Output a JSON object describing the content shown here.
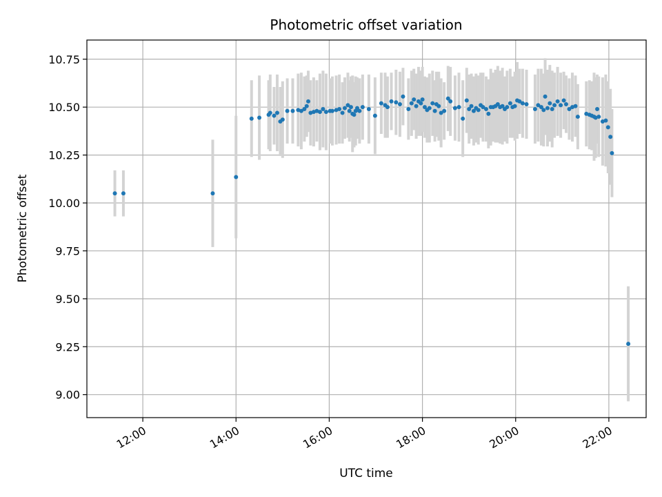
{
  "chart_data": {
    "type": "scatter",
    "title": "Photometric offset variation",
    "xlabel": "UTC time",
    "ylabel": "Photometric offset",
    "x_unit": "UTC hh:mm",
    "x_ticks": [
      "12:00",
      "14:00",
      "16:00",
      "18:00",
      "20:00",
      "22:00"
    ],
    "xlim": [
      "10:48",
      "22:48"
    ],
    "y_ticks": [
      "9.00",
      "9.25",
      "9.50",
      "9.75",
      "10.00",
      "10.25",
      "10.50",
      "10.75"
    ],
    "ylim": [
      8.88,
      10.85
    ],
    "grid": true,
    "colors": {
      "point": "#1f77b4",
      "errorbar": "#d3d3d3",
      "grid": "#b0b0b0",
      "axes": "#000000"
    },
    "series": [
      {
        "points": [
          [
            "11:24",
            10.05,
            0.12
          ],
          [
            "11:35",
            10.05,
            0.12
          ],
          [
            "13:30",
            10.05,
            0.28
          ],
          [
            "14:00",
            10.135,
            0.32
          ],
          [
            "14:20",
            10.44,
            0.2
          ],
          [
            "14:30",
            10.445,
            0.22
          ],
          [
            "14:42",
            10.46,
            0.18
          ],
          [
            "14:44",
            10.47,
            0.2
          ],
          [
            "14:49",
            10.455,
            0.15
          ],
          [
            "14:53",
            10.47,
            0.2
          ],
          [
            "14:57",
            10.425,
            0.18
          ],
          [
            "15:00",
            10.435,
            0.2
          ],
          [
            "15:06",
            10.48,
            0.17
          ],
          [
            "15:13",
            10.48,
            0.17
          ],
          [
            "15:20",
            10.485,
            0.19
          ],
          [
            "15:24",
            10.48,
            0.2
          ],
          [
            "15:28",
            10.49,
            0.17
          ],
          [
            "15:31",
            10.505,
            0.16
          ],
          [
            "15:33",
            10.53,
            0.16
          ],
          [
            "15:36",
            10.47,
            0.17
          ],
          [
            "15:40",
            10.475,
            0.18
          ],
          [
            "15:44",
            10.48,
            0.16
          ],
          [
            "15:48",
            10.475,
            0.2
          ],
          [
            "15:52",
            10.49,
            0.2
          ],
          [
            "15:56",
            10.475,
            0.2
          ],
          [
            "16:01",
            10.48,
            0.17
          ],
          [
            "16:04",
            10.48,
            0.18
          ],
          [
            "16:09",
            10.485,
            0.18
          ],
          [
            "16:13",
            10.49,
            0.18
          ],
          [
            "16:17",
            10.47,
            0.16
          ],
          [
            "16:20",
            10.495,
            0.16
          ],
          [
            "16:24",
            10.51,
            0.17
          ],
          [
            "16:26",
            10.48,
            0.16
          ],
          [
            "16:28",
            10.5,
            0.16
          ],
          [
            "16:30",
            10.465,
            0.2
          ],
          [
            "16:32",
            10.46,
            0.17
          ],
          [
            "16:34",
            10.48,
            0.18
          ],
          [
            "16:36",
            10.495,
            0.16
          ],
          [
            "16:39",
            10.48,
            0.17
          ],
          [
            "16:43",
            10.5,
            0.17
          ],
          [
            "16:51",
            10.49,
            0.18
          ],
          [
            "16:59",
            10.455,
            0.2
          ],
          [
            "17:07",
            10.52,
            0.16
          ],
          [
            "17:12",
            10.51,
            0.17
          ],
          [
            "17:15",
            10.5,
            0.16
          ],
          [
            "17:20",
            10.53,
            0.15
          ],
          [
            "17:26",
            10.525,
            0.17
          ],
          [
            "17:31",
            10.515,
            0.17
          ],
          [
            "17:35",
            10.555,
            0.15
          ],
          [
            "17:42",
            10.49,
            0.16
          ],
          [
            "17:46",
            10.52,
            0.17
          ],
          [
            "17:49",
            10.54,
            0.16
          ],
          [
            "17:52",
            10.505,
            0.17
          ],
          [
            "17:55",
            10.53,
            0.18
          ],
          [
            "17:58",
            10.52,
            0.17
          ],
          [
            "18:00",
            10.54,
            0.17
          ],
          [
            "18:03",
            10.5,
            0.16
          ],
          [
            "18:06",
            10.485,
            0.17
          ],
          [
            "18:09",
            10.495,
            0.18
          ],
          [
            "18:13",
            10.52,
            0.17
          ],
          [
            "18:16",
            10.48,
            0.16
          ],
          [
            "18:18",
            10.515,
            0.17
          ],
          [
            "18:21",
            10.505,
            0.18
          ],
          [
            "18:24",
            10.47,
            0.18
          ],
          [
            "18:28",
            10.48,
            0.15
          ],
          [
            "18:33",
            10.545,
            0.17
          ],
          [
            "18:36",
            10.53,
            0.18
          ],
          [
            "18:42",
            10.495,
            0.17
          ],
          [
            "18:47",
            10.5,
            0.18
          ],
          [
            "18:52",
            10.44,
            0.2
          ],
          [
            "18:57",
            10.535,
            0.17
          ],
          [
            "19:00",
            10.49,
            0.18
          ],
          [
            "19:03",
            10.505,
            0.17
          ],
          [
            "19:06",
            10.48,
            0.18
          ],
          [
            "19:09",
            10.495,
            0.18
          ],
          [
            "19:12",
            10.485,
            0.18
          ],
          [
            "19:15",
            10.51,
            0.17
          ],
          [
            "19:18",
            10.5,
            0.18
          ],
          [
            "19:22",
            10.49,
            0.17
          ],
          [
            "19:25",
            10.465,
            0.18
          ],
          [
            "19:28",
            10.5,
            0.2
          ],
          [
            "19:31",
            10.5,
            0.18
          ],
          [
            "19:34",
            10.505,
            0.19
          ],
          [
            "19:37",
            10.515,
            0.2
          ],
          [
            "19:40",
            10.5,
            0.19
          ],
          [
            "19:43",
            10.505,
            0.2
          ],
          [
            "19:46",
            10.49,
            0.17
          ],
          [
            "19:49",
            10.5,
            0.19
          ],
          [
            "19:53",
            10.52,
            0.18
          ],
          [
            "19:56",
            10.5,
            0.16
          ],
          [
            "19:59",
            10.505,
            0.18
          ],
          [
            "20:02",
            10.535,
            0.2
          ],
          [
            "20:05",
            10.53,
            0.17
          ],
          [
            "20:09",
            10.52,
            0.18
          ],
          [
            "20:14",
            10.515,
            0.18
          ],
          [
            "20:25",
            10.49,
            0.18
          ],
          [
            "20:29",
            10.51,
            0.19
          ],
          [
            "20:33",
            10.5,
            0.2
          ],
          [
            "20:36",
            10.485,
            0.19
          ],
          [
            "20:38",
            10.555,
            0.2
          ],
          [
            "20:41",
            10.495,
            0.2
          ],
          [
            "20:44",
            10.52,
            0.2
          ],
          [
            "20:47",
            10.49,
            0.2
          ],
          [
            "20:50",
            10.51,
            0.17
          ],
          [
            "20:54",
            10.53,
            0.18
          ],
          [
            "20:58",
            10.51,
            0.17
          ],
          [
            "21:02",
            10.535,
            0.15
          ],
          [
            "21:05",
            10.515,
            0.15
          ],
          [
            "21:09",
            10.49,
            0.16
          ],
          [
            "21:13",
            10.5,
            0.18
          ],
          [
            "21:17",
            10.505,
            0.16
          ],
          [
            "21:20",
            10.45,
            0.17
          ],
          [
            "21:31",
            10.465,
            0.17
          ],
          [
            "21:35",
            10.46,
            0.18
          ],
          [
            "21:38",
            10.455,
            0.18
          ],
          [
            "21:41",
            10.45,
            0.23
          ],
          [
            "21:43",
            10.445,
            0.21
          ],
          [
            "21:45",
            10.49,
            0.18
          ],
          [
            "21:47",
            10.45,
            0.21
          ],
          [
            "21:52",
            10.425,
            0.23
          ],
          [
            "21:56",
            10.43,
            0.24
          ],
          [
            "21:59",
            10.395,
            0.24
          ],
          [
            "22:02",
            10.345,
            0.25
          ],
          [
            "22:04",
            10.26,
            0.23
          ],
          [
            "22:25",
            9.265,
            0.3
          ]
        ]
      }
    ]
  }
}
